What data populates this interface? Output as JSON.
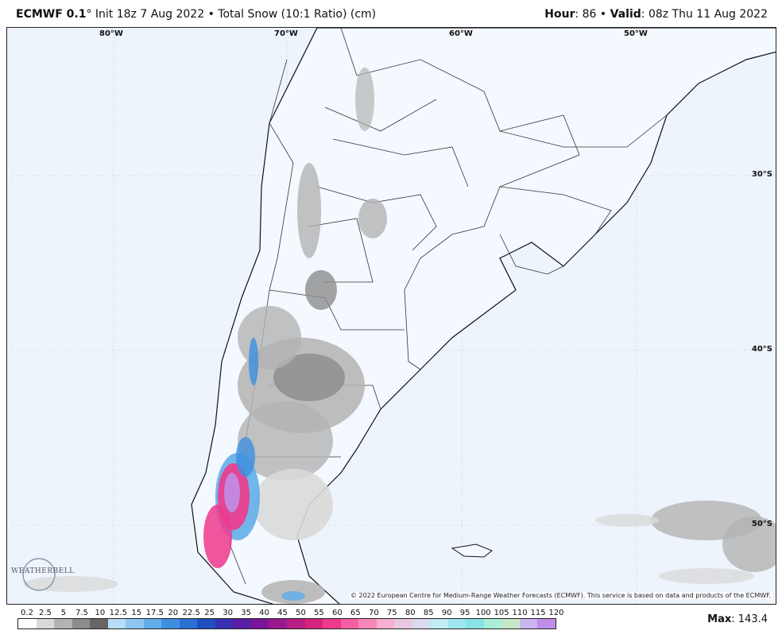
{
  "header": {
    "model": "ECMWF 0.1",
    "degree": "°",
    "init_text": "Init 18z 7 Aug 2022",
    "separator": "•",
    "product": "Total Snow (10:1 Ratio) (cm)",
    "hour_label": "Hour",
    "hour_value": ": 86",
    "valid_label": "Valid",
    "valid_value": ": 08z Thu 11 Aug 2022"
  },
  "map": {
    "longitude_labels": [
      "80°W",
      "70°W",
      "60°W",
      "50°W"
    ],
    "latitude_labels": [
      "30°S",
      "40°S",
      "50°S"
    ],
    "copyright": "© 2022 European Centre for Medium-Range Weather Forecasts (ECMWF). This service is based on data and products of the ECMWF.",
    "logo_text": "WEATHERBELL",
    "ocean_color": "#eef4fc",
    "land_color": "#f4f8ff",
    "border_color": "#333333"
  },
  "legend": {
    "ticks": [
      "0.2",
      "2.5",
      "5",
      "7.5",
      "10",
      "12.5",
      "15",
      "17.5",
      "20",
      "22.5",
      "25",
      "30",
      "35",
      "40",
      "45",
      "50",
      "55",
      "60",
      "65",
      "70",
      "75",
      "80",
      "85",
      "90",
      "95",
      "100",
      "105",
      "110",
      "115",
      "120"
    ],
    "colors": [
      "#ffffff",
      "#d9d9d9",
      "#b3b3b3",
      "#8c8c8c",
      "#666666",
      "#b7dcf7",
      "#8ec5f1",
      "#63aee9",
      "#3c8fe0",
      "#2a6fd1",
      "#1f4fc0",
      "#3a2fb0",
      "#5a1ea6",
      "#7a1599",
      "#991a8f",
      "#b81f86",
      "#d6247e",
      "#ee3a8c",
      "#f55fa3",
      "#f888ba",
      "#f7b0d0",
      "#e8c7e2",
      "#d9d9ef",
      "#c0ebf5",
      "#9ee6f0",
      "#88e3e6",
      "#a8eed9",
      "#c4e8c8",
      "#c9b6f0",
      "#c08ee8"
    ],
    "max_label": "Max",
    "max_value": ": 143.4"
  }
}
